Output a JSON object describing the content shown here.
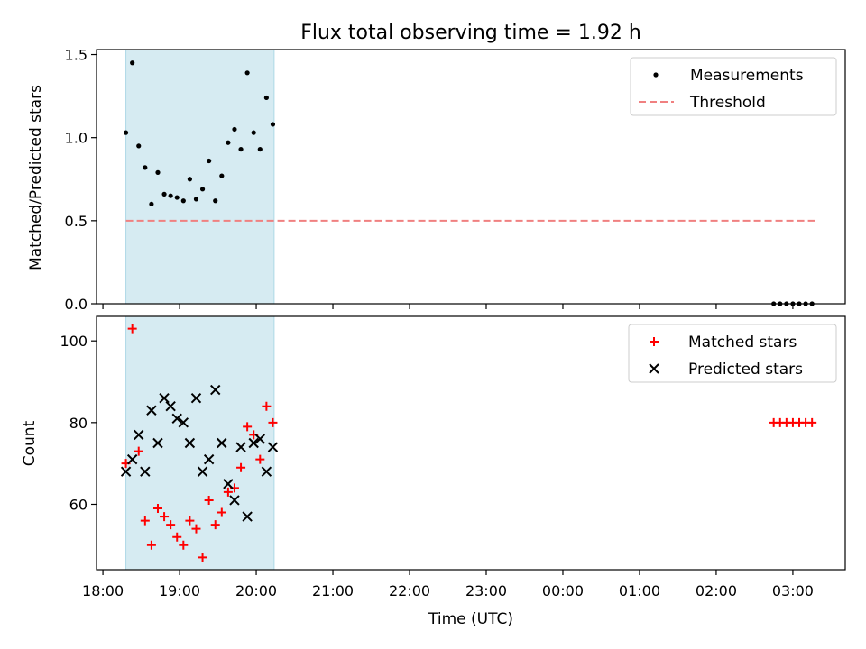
{
  "chart_data": [
    {
      "type": "scatter",
      "title": "Flux total observing time = 1.92 h",
      "xlabel": "",
      "ylabel": "Matched/Predicted stars",
      "xlim": [
        "17:55",
        "03:41"
      ],
      "ylim": [
        0,
        1.53
      ],
      "yticks": [
        0.0,
        0.5,
        1.0,
        1.5
      ],
      "ytick_labels": [
        "0.0",
        "0.5",
        "1.0",
        "1.5"
      ],
      "grid": false,
      "legend_position": "top-right",
      "shaded_region": {
        "x0": "18:18",
        "x1": "20:14",
        "color": "#add8e6"
      },
      "series": [
        {
          "name": "Measurements",
          "marker": "dot",
          "color": "#000000",
          "x": [
            "18:18",
            "18:23",
            "18:28",
            "18:33",
            "18:38",
            "18:43",
            "18:48",
            "18:53",
            "18:58",
            "19:03",
            "19:08",
            "19:13",
            "19:18",
            "19:23",
            "19:28",
            "19:33",
            "19:38",
            "19:43",
            "19:48",
            "19:53",
            "19:58",
            "20:03",
            "20:08",
            "20:13",
            "02:45",
            "02:50",
            "02:55",
            "03:00",
            "03:05",
            "03:10",
            "03:15"
          ],
          "y": [
            1.03,
            1.45,
            0.95,
            0.82,
            0.6,
            0.79,
            0.66,
            0.65,
            0.64,
            0.62,
            0.75,
            0.63,
            0.69,
            0.86,
            0.62,
            0.77,
            0.97,
            1.05,
            0.93,
            1.39,
            1.03,
            0.93,
            1.24,
            1.08,
            0,
            0,
            0,
            0,
            0,
            0,
            0
          ]
        },
        {
          "name": "Threshold",
          "style": "dashed",
          "color": "#f08080",
          "x": [
            "18:18",
            "03:18"
          ],
          "y": [
            0.5,
            0.5
          ]
        }
      ]
    },
    {
      "type": "scatter",
      "title": "",
      "xlabel": "Time (UTC)",
      "ylabel": "Count",
      "xlim": [
        "17:55",
        "03:41"
      ],
      "ylim": [
        44,
        106
      ],
      "yticks": [
        60,
        80,
        100
      ],
      "ytick_labels": [
        "60",
        "80",
        "100"
      ],
      "xtick_labels": [
        "18:00",
        "19:00",
        "20:00",
        "21:00",
        "22:00",
        "23:00",
        "00:00",
        "01:00",
        "02:00",
        "03:00"
      ],
      "grid": false,
      "legend_position": "top-right",
      "shaded_region": {
        "x0": "18:18",
        "x1": "20:14",
        "color": "#add8e6"
      },
      "series": [
        {
          "name": "Matched stars",
          "marker": "plus",
          "color": "#ff0000",
          "x": [
            "18:18",
            "18:23",
            "18:28",
            "18:33",
            "18:38",
            "18:43",
            "18:48",
            "18:53",
            "18:58",
            "19:03",
            "19:08",
            "19:13",
            "19:18",
            "19:23",
            "19:28",
            "19:33",
            "19:38",
            "19:43",
            "19:48",
            "19:53",
            "19:58",
            "20:03",
            "20:08",
            "20:13",
            "02:45",
            "02:50",
            "02:55",
            "03:00",
            "03:05",
            "03:10",
            "03:15"
          ],
          "y": [
            70,
            103,
            73,
            56,
            50,
            59,
            57,
            55,
            52,
            50,
            56,
            54,
            47,
            61,
            55,
            58,
            63,
            64,
            69,
            79,
            77,
            71,
            84,
            80,
            80,
            80,
            80,
            80,
            80,
            80,
            80
          ]
        },
        {
          "name": "Predicted stars",
          "marker": "x",
          "color": "#000000",
          "x": [
            "18:18",
            "18:23",
            "18:28",
            "18:33",
            "18:38",
            "18:43",
            "18:48",
            "18:53",
            "18:58",
            "19:03",
            "19:08",
            "19:13",
            "19:18",
            "19:23",
            "19:28",
            "19:33",
            "19:38",
            "19:43",
            "19:48",
            "19:53",
            "19:58",
            "20:03",
            "20:08",
            "20:13"
          ],
          "y": [
            68,
            71,
            77,
            68,
            83,
            75,
            86,
            84,
            81,
            80,
            75,
            86,
            68,
            71,
            88,
            75,
            65,
            61,
            74,
            57,
            75,
            76,
            68,
            74
          ]
        }
      ]
    }
  ]
}
